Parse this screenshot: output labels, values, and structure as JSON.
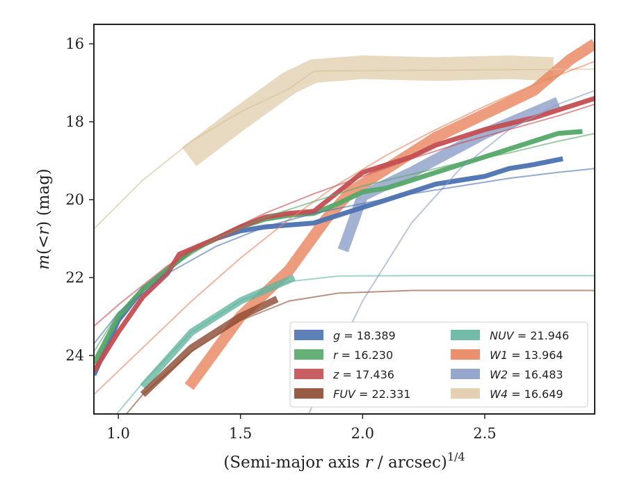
{
  "chart_data": {
    "type": "line",
    "title": "",
    "xlabel": "(Semi-major axis r / arcsec)^1/4",
    "xlabel_parts": {
      "pre": "(Semi-major axis ",
      "var": "r",
      "post": " / arcsec)",
      "exp": "1/4"
    },
    "ylabel": "m(< r) (mag)",
    "ylabel_parts": {
      "var": "m",
      "paren_open": "(<",
      "r": "r",
      "paren_close": ")",
      "unit": "(mag)"
    },
    "xlim": [
      0.9,
      2.95
    ],
    "ylim": [
      25.5,
      15.5
    ],
    "y_inverted": true,
    "xticks": [
      1.0,
      1.5,
      2.0,
      2.5
    ],
    "xtick_labels": [
      "1.0",
      "1.5",
      "2.0",
      "2.5"
    ],
    "yticks": [
      16,
      18,
      20,
      22,
      24
    ],
    "ytick_labels": [
      "16",
      "18",
      "20",
      "22",
      "24"
    ],
    "grid": false,
    "legend_position": "lower right",
    "series": [
      {
        "name": "g",
        "legend_label": "g = 18.389",
        "color": "#4c72b0",
        "profile": [
          [
            0.9,
            24.5
          ],
          [
            1.0,
            23.1
          ],
          [
            1.1,
            22.3
          ],
          [
            1.2,
            21.8
          ],
          [
            1.3,
            21.3
          ],
          [
            1.4,
            21.0
          ],
          [
            1.5,
            20.8
          ],
          [
            1.6,
            20.7
          ],
          [
            1.7,
            20.65
          ],
          [
            1.8,
            20.6
          ],
          [
            1.9,
            20.4
          ],
          [
            2.0,
            20.2
          ],
          [
            2.1,
            20.0
          ],
          [
            2.2,
            19.8
          ],
          [
            2.3,
            19.6
          ],
          [
            2.4,
            19.5
          ],
          [
            2.5,
            19.4
          ],
          [
            2.6,
            19.2
          ],
          [
            2.7,
            19.1
          ],
          [
            2.82,
            18.95
          ]
        ],
        "model": [
          [
            0.9,
            23.7
          ],
          [
            1.0,
            22.9
          ],
          [
            1.2,
            21.9
          ],
          [
            1.4,
            21.2
          ],
          [
            1.6,
            20.7
          ],
          [
            1.8,
            20.35
          ],
          [
            2.0,
            20.1
          ],
          [
            2.2,
            19.85
          ],
          [
            2.4,
            19.65
          ],
          [
            2.6,
            19.45
          ],
          [
            2.8,
            19.3
          ],
          [
            2.95,
            19.2
          ]
        ]
      },
      {
        "name": "r",
        "legend_label": "r = 16.230",
        "color": "#55a868",
        "profile": [
          [
            0.9,
            24.2
          ],
          [
            1.0,
            23.0
          ],
          [
            1.1,
            22.3
          ],
          [
            1.2,
            21.8
          ],
          [
            1.3,
            21.3
          ],
          [
            1.4,
            21.0
          ],
          [
            1.5,
            20.7
          ],
          [
            1.6,
            20.5
          ],
          [
            1.7,
            20.4
          ],
          [
            1.8,
            20.35
          ],
          [
            1.9,
            20.1
          ],
          [
            2.0,
            19.8
          ],
          [
            2.1,
            19.7
          ],
          [
            2.2,
            19.5
          ],
          [
            2.3,
            19.3
          ],
          [
            2.4,
            19.1
          ],
          [
            2.5,
            18.9
          ],
          [
            2.6,
            18.7
          ],
          [
            2.7,
            18.5
          ],
          [
            2.8,
            18.3
          ],
          [
            2.9,
            18.25
          ]
        ],
        "model": [
          [
            0.9,
            23.9
          ],
          [
            1.0,
            22.9
          ],
          [
            1.2,
            21.8
          ],
          [
            1.4,
            21.0
          ],
          [
            1.6,
            20.45
          ],
          [
            1.8,
            20.05
          ],
          [
            2.0,
            19.65
          ],
          [
            2.2,
            19.35
          ],
          [
            2.4,
            19.05
          ],
          [
            2.6,
            18.8
          ],
          [
            2.8,
            18.5
          ],
          [
            2.95,
            18.3
          ]
        ]
      },
      {
        "name": "z",
        "legend_label": "z = 17.436",
        "color": "#c44e52",
        "profile": [
          [
            0.9,
            24.4
          ],
          [
            1.0,
            23.4
          ],
          [
            1.1,
            22.5
          ],
          [
            1.2,
            21.9
          ],
          [
            1.25,
            21.4
          ],
          [
            1.4,
            21.0
          ],
          [
            1.5,
            20.7
          ],
          [
            1.6,
            20.45
          ],
          [
            1.7,
            20.35
          ],
          [
            1.8,
            20.3
          ],
          [
            1.9,
            19.8
          ],
          [
            2.0,
            19.3
          ],
          [
            2.1,
            19.1
          ],
          [
            2.2,
            18.9
          ],
          [
            2.3,
            18.6
          ],
          [
            2.4,
            18.4
          ],
          [
            2.5,
            18.2
          ],
          [
            2.6,
            18.05
          ],
          [
            2.7,
            17.9
          ],
          [
            2.8,
            17.7
          ],
          [
            2.95,
            17.4
          ]
        ],
        "model": [
          [
            0.9,
            23.25
          ],
          [
            1.0,
            22.7
          ],
          [
            1.2,
            21.7
          ],
          [
            1.4,
            20.95
          ],
          [
            1.6,
            20.35
          ],
          [
            1.8,
            19.85
          ],
          [
            2.0,
            19.4
          ],
          [
            2.2,
            18.95
          ],
          [
            2.4,
            18.55
          ],
          [
            2.6,
            18.2
          ],
          [
            2.8,
            17.85
          ],
          [
            2.95,
            17.55
          ]
        ]
      },
      {
        "name": "FUV",
        "legend_label": "FUV = 22.331",
        "color": "#8c4a2f",
        "profile": [
          [
            1.1,
            25.0
          ],
          [
            1.3,
            23.8
          ],
          [
            1.5,
            23.0
          ],
          [
            1.65,
            22.55
          ]
        ],
        "model": [
          [
            0.9,
            26.5
          ],
          [
            1.1,
            25.0
          ],
          [
            1.3,
            23.9
          ],
          [
            1.5,
            23.1
          ],
          [
            1.7,
            22.6
          ],
          [
            1.9,
            22.4
          ],
          [
            2.2,
            22.33
          ],
          [
            2.95,
            22.33
          ]
        ]
      },
      {
        "name": "NUV",
        "legend_label": "NUV = 21.946",
        "color": "#64b5a0",
        "profile": [
          [
            1.1,
            24.8
          ],
          [
            1.3,
            23.4
          ],
          [
            1.5,
            22.6
          ],
          [
            1.72,
            22.0
          ]
        ],
        "model": [
          [
            0.9,
            26.2
          ],
          [
            1.1,
            24.7
          ],
          [
            1.3,
            23.4
          ],
          [
            1.5,
            22.6
          ],
          [
            1.7,
            22.1
          ],
          [
            1.9,
            21.96
          ],
          [
            2.2,
            21.95
          ],
          [
            2.95,
            21.95
          ]
        ]
      },
      {
        "name": "W1",
        "legend_label": "W1 = 13.964",
        "color": "#e8845e",
        "profile": [
          [
            1.29,
            24.8
          ],
          [
            1.5,
            23.0
          ],
          [
            1.7,
            21.8
          ],
          [
            1.85,
            20.5
          ],
          [
            1.95,
            19.8
          ],
          [
            2.1,
            19.2
          ],
          [
            2.3,
            18.4
          ],
          [
            2.5,
            17.8
          ],
          [
            2.7,
            17.2
          ],
          [
            2.85,
            16.4
          ],
          [
            2.95,
            16.0
          ]
        ],
        "model": [
          [
            0.9,
            25.0
          ],
          [
            1.1,
            23.8
          ],
          [
            1.3,
            22.6
          ],
          [
            1.5,
            21.5
          ],
          [
            1.7,
            20.5
          ],
          [
            1.9,
            19.6
          ],
          [
            2.1,
            18.85
          ],
          [
            2.3,
            18.2
          ],
          [
            2.5,
            17.6
          ],
          [
            2.7,
            17.05
          ],
          [
            2.95,
            16.45
          ]
        ]
      },
      {
        "name": "W2",
        "legend_label": "W2 = 16.483",
        "color": "#8c9dc7",
        "profile": [
          [
            1.92,
            21.3
          ],
          [
            2.0,
            19.9
          ],
          [
            2.2,
            19.3
          ],
          [
            2.5,
            18.3
          ],
          [
            2.8,
            17.5
          ]
        ],
        "model": [
          [
            1.65,
            27.5
          ],
          [
            1.8,
            25.2
          ],
          [
            2.0,
            22.6
          ],
          [
            2.2,
            20.6
          ],
          [
            2.4,
            19.2
          ],
          [
            2.6,
            18.2
          ],
          [
            2.8,
            17.55
          ],
          [
            2.95,
            17.2
          ]
        ]
      },
      {
        "name": "W4",
        "legend_label": "W4 = 16.649",
        "color": "#d9bf98",
        "profile": [
          [
            1.29,
            18.9
          ],
          [
            1.5,
            17.9
          ],
          [
            1.7,
            17.0
          ],
          [
            1.8,
            16.7
          ],
          [
            2.0,
            16.6
          ],
          [
            2.3,
            16.65
          ],
          [
            2.6,
            16.6
          ],
          [
            2.78,
            16.65
          ]
        ],
        "model": [
          [
            0.9,
            20.75
          ],
          [
            1.1,
            19.5
          ],
          [
            1.3,
            18.5
          ],
          [
            1.5,
            17.75
          ],
          [
            1.7,
            17.15
          ],
          [
            1.8,
            16.7
          ],
          [
            2.95,
            16.65
          ]
        ]
      }
    ]
  }
}
